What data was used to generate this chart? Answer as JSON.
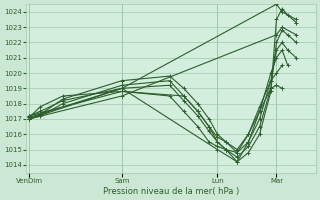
{
  "title": "Pression niveau de la mer( hPa )",
  "bg_color": "#cce8d4",
  "plot_bg_color": "#d4eede",
  "grid_color": "#9fc9ab",
  "line_color": "#2d5e2d",
  "ylim": [
    1013.5,
    1024.5
  ],
  "yticks": [
    1014,
    1015,
    1016,
    1017,
    1018,
    1019,
    1020,
    1021,
    1022,
    1023,
    1024
  ],
  "xtick_labels": [
    "VenDim",
    "Sam",
    "Lun",
    "Mar"
  ],
  "xtick_pos": [
    0.0,
    0.33,
    0.67,
    0.88
  ],
  "series": [
    [
      0.0,
      1017.1,
      0.04,
      1017.8,
      0.12,
      1018.5,
      0.33,
      1018.8,
      0.5,
      1018.5,
      0.55,
      1017.5,
      0.6,
      1016.5,
      0.64,
      1015.5,
      0.67,
      1015.2,
      0.7,
      1015.0,
      0.74,
      1014.2,
      0.78,
      1014.8,
      0.82,
      1016.0,
      0.86,
      1018.8,
      0.88,
      1023.5,
      0.9,
      1024.2,
      0.92,
      1023.8,
      0.95,
      1023.3
    ],
    [
      0.0,
      1017.2,
      0.04,
      1017.5,
      0.12,
      1018.2,
      0.33,
      1019.0,
      0.5,
      1019.2,
      0.55,
      1018.2,
      0.6,
      1017.2,
      0.64,
      1016.2,
      0.67,
      1015.5,
      0.7,
      1015.0,
      0.74,
      1014.5,
      0.78,
      1015.2,
      0.82,
      1016.5,
      0.86,
      1019.0,
      0.88,
      1022.0,
      0.9,
      1022.8,
      0.92,
      1022.5,
      0.95,
      1022.0
    ],
    [
      0.0,
      1017.0,
      0.04,
      1017.2,
      0.12,
      1018.0,
      0.33,
      1019.2,
      0.5,
      1019.5,
      0.55,
      1018.5,
      0.6,
      1017.5,
      0.64,
      1016.5,
      0.67,
      1015.8,
      0.7,
      1015.5,
      0.74,
      1014.8,
      0.78,
      1015.5,
      0.82,
      1017.0,
      0.86,
      1019.5,
      0.88,
      1021.5,
      0.9,
      1022.0,
      0.92,
      1021.5,
      0.95,
      1021.0
    ],
    [
      0.0,
      1017.0,
      0.04,
      1017.3,
      0.12,
      1018.3,
      0.33,
      1019.5,
      0.5,
      1019.8,
      0.55,
      1019.0,
      0.6,
      1018.0,
      0.64,
      1017.0,
      0.67,
      1016.0,
      0.7,
      1015.5,
      0.74,
      1015.0,
      0.78,
      1016.0,
      0.82,
      1017.5,
      0.86,
      1020.0,
      0.88,
      1021.0,
      0.9,
      1021.5,
      0.92,
      1020.5
    ],
    [
      0.0,
      1017.1,
      0.33,
      1019.0,
      0.67,
      1015.0,
      0.74,
      1014.2,
      0.78,
      1015.5,
      0.82,
      1017.5,
      0.86,
      1019.0,
      0.88,
      1019.2,
      0.9,
      1019.0
    ],
    [
      0.0,
      1017.0,
      0.33,
      1019.0,
      0.88,
      1024.5,
      0.9,
      1024.0,
      0.95,
      1023.5
    ],
    [
      0.0,
      1017.0,
      0.33,
      1018.5,
      0.88,
      1022.5,
      0.9,
      1023.0,
      0.95,
      1022.5
    ],
    [
      0.0,
      1017.2,
      0.33,
      1018.8,
      0.55,
      1018.5,
      0.6,
      1017.5,
      0.64,
      1016.5,
      0.67,
      1015.5,
      0.7,
      1015.0,
      0.74,
      1014.8,
      0.78,
      1016.0,
      0.82,
      1017.8,
      0.86,
      1019.5,
      0.88,
      1020.0,
      0.9,
      1020.5
    ]
  ],
  "marker": "+",
  "marker_size": 3,
  "linewidth": 0.8
}
